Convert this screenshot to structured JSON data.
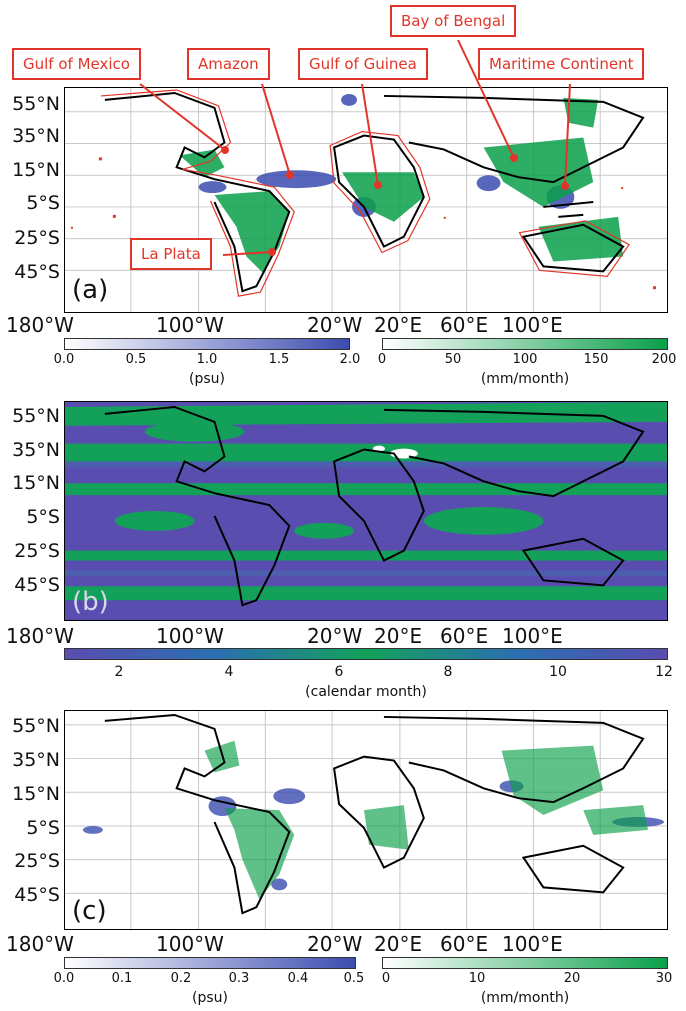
{
  "lat_labels": [
    "55°N",
    "35°N",
    "15°N",
    "5°S",
    "25°S",
    "45°S"
  ],
  "lon_labels": [
    "180°W",
    "100°W",
    "20°W",
    "20°E",
    "60°E",
    "100°E"
  ],
  "panels": {
    "a": {
      "label": "(a)",
      "callouts": {
        "gulf_of_mexico": "Gulf of Mexico",
        "amazon": "Amazon",
        "gulf_of_guinea": "Gulf of Guinea",
        "bay_of_bengal": "Bay of Bengal",
        "maritime_continent": "Maritime Continent",
        "la_plata": "La Plata"
      },
      "colorbar_left": {
        "ticks": [
          "0.0",
          "0.5",
          "1.0",
          "1.5",
          "2.0"
        ],
        "unit": "(psu)",
        "range": [
          0.0,
          2.0
        ]
      },
      "colorbar_right": {
        "ticks": [
          "0",
          "50",
          "100",
          "150",
          "200"
        ],
        "unit": "(mm/month)",
        "range": [
          0,
          200
        ]
      }
    },
    "b": {
      "label": "(b)",
      "colorbar": {
        "ticks": [
          "2",
          "4",
          "6",
          "8",
          "10",
          "12"
        ],
        "unit": "(calendar month)",
        "range": [
          1,
          12
        ]
      }
    },
    "c": {
      "label": "(c)",
      "colorbar_left": {
        "ticks": [
          "0.0",
          "0.1",
          "0.2",
          "0.3",
          "0.4",
          "0.5"
        ],
        "unit": "(psu)",
        "range": [
          0.0,
          0.5
        ]
      },
      "colorbar_right": {
        "ticks": [
          "0",
          "10",
          "20",
          "30"
        ],
        "unit": "(mm/month)",
        "range": [
          0,
          30
        ]
      }
    }
  },
  "colors": {
    "salinity": "#3b4cb0",
    "precip": "#0aa04a",
    "callout": "#e2352a",
    "month_purple": "#5a4db0",
    "month_green": "#13a15a"
  }
}
